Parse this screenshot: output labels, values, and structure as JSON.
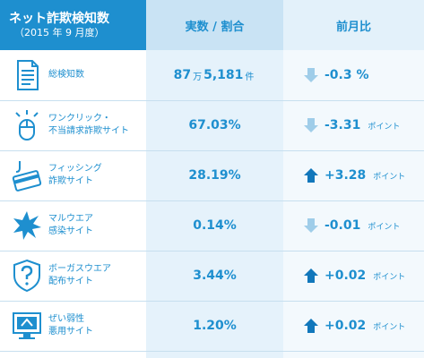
{
  "header": {
    "title": "ネット詐欺検知数",
    "subtitle": "（2015 年 9 月度）",
    "col_value": "実数 / 割合",
    "col_change": "前月比"
  },
  "colors": {
    "primary": "#1e8fcf",
    "up_arrow": "#1177bb",
    "down_arrow": "#9fcde9"
  },
  "rows": [
    {
      "icon": "document-icon",
      "label1": "総検知数",
      "label2": "",
      "value_num1": "87",
      "value_unit1": "万",
      "value_num2": "5,181",
      "value_unit2": "件",
      "direction": "down",
      "change": "-0.3 %",
      "change_unit": ""
    },
    {
      "icon": "mouse-click-icon",
      "label1": "ワンクリック・",
      "label2": "不当請求詐欺サイト",
      "value": "67.03%",
      "direction": "down",
      "change": "-3.31",
      "change_unit": "ポイント"
    },
    {
      "icon": "credit-card-hook-icon",
      "label1": "フィッシング",
      "label2": "詐欺サイト",
      "value": "28.19%",
      "direction": "up",
      "change": "+3.28",
      "change_unit": "ポイント"
    },
    {
      "icon": "malware-burst-icon",
      "label1": "マルウエア",
      "label2": "感染サイト",
      "value": "0.14%",
      "direction": "down",
      "change": "-0.01",
      "change_unit": "ポイント"
    },
    {
      "icon": "shield-question-icon",
      "label1": "ボーガスウエア",
      "label2": "配布サイト",
      "value": "3.44%",
      "direction": "up",
      "change": "+0.02",
      "change_unit": "ポイント"
    },
    {
      "icon": "vulnerable-monitor-icon",
      "label1": "ぜい弱性",
      "label2": "悪用サイト",
      "value": "1.20%",
      "direction": "up",
      "change": "+0.02",
      "change_unit": "ポイント"
    }
  ]
}
